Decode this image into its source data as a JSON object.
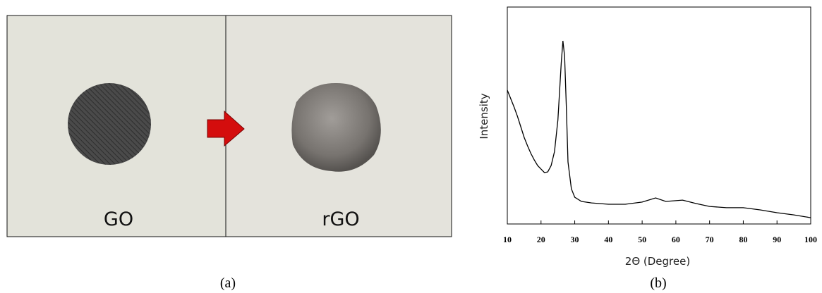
{
  "photos": {
    "labels": [
      "GO",
      "rGO"
    ],
    "caption": "(a)"
  },
  "chart_data": {
    "type": "line",
    "xlabel": "2Θ (Degree)",
    "ylabel": "Intensity",
    "caption": "(b)",
    "x": [
      10,
      11,
      12,
      13,
      14,
      15,
      16,
      17,
      18,
      19,
      20,
      21,
      22,
      23,
      24,
      25,
      26,
      26.5,
      27,
      27.5,
      28,
      29,
      30,
      32,
      35,
      40,
      45,
      50,
      54,
      57,
      62,
      66,
      70,
      75,
      80,
      85,
      90,
      95,
      100
    ],
    "values": [
      61.7,
      57.8,
      53.9,
      49.7,
      44.8,
      39.9,
      36,
      32.5,
      29.5,
      26.9,
      25.3,
      23.7,
      24,
      26.9,
      33.4,
      48,
      74,
      84.4,
      77.3,
      54.5,
      28.6,
      16.2,
      12.3,
      10.4,
      9.7,
      9.1,
      9.1,
      10.1,
      12,
      10.4,
      11,
      9.4,
      8.1,
      7.5,
      7.5,
      6.5,
      5.2,
      4.2,
      2.9
    ],
    "color": "#000000",
    "xlim": [
      10,
      100
    ],
    "xticks": [
      10,
      20,
      30,
      40,
      50,
      60,
      70,
      80,
      90,
      100
    ],
    "ylim": [
      0,
      100
    ]
  }
}
